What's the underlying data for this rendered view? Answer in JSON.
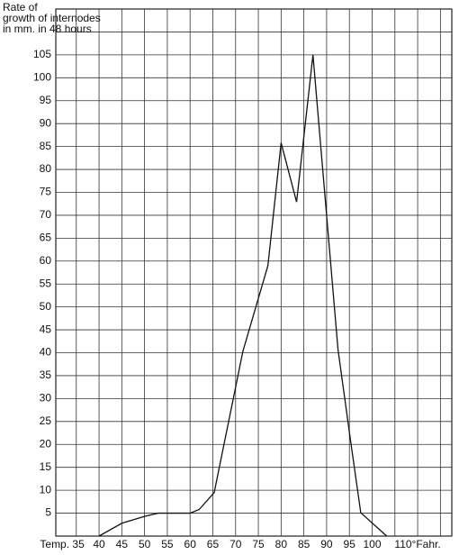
{
  "chart_data": {
    "type": "line",
    "y_label": [
      "Rate of",
      "growth of internodes",
      "in mm. in 48 hours"
    ],
    "series": [
      {
        "color": "#111111",
        "x": [
          40,
          45,
          50,
          53,
          60,
          62,
          65.3,
          71.6,
          77.1,
          80,
          83.4,
          87,
          92.5,
          95.3,
          97.5,
          103.2
        ],
        "values": [
          0,
          2.8,
          4.3,
          5,
          5,
          5.8,
          9.5,
          40.3,
          59,
          85.8,
          72.9,
          105,
          40.7,
          20.5,
          5.1,
          0
        ]
      }
    ],
    "xlim": [
      30.5,
      117.5
    ],
    "xticks": [
      {
        "value": 35,
        "label": "Temp. 35"
      },
      40,
      45,
      50,
      55,
      60,
      65,
      70,
      75,
      80,
      85,
      90,
      95,
      100,
      {
        "value": 105,
        "label": null
      },
      {
        "value": 110,
        "label": "110°Fahr."
      },
      {
        "value": 115,
        "label": null
      }
    ],
    "ylim": [
      0,
      115
    ],
    "yticks": [
      5,
      10,
      15,
      20,
      25,
      30,
      35,
      40,
      45,
      50,
      55,
      60,
      65,
      70,
      75,
      80,
      85,
      90,
      95,
      100,
      105,
      {
        "value": 110,
        "label": null
      }
    ],
    "grid": true
  }
}
